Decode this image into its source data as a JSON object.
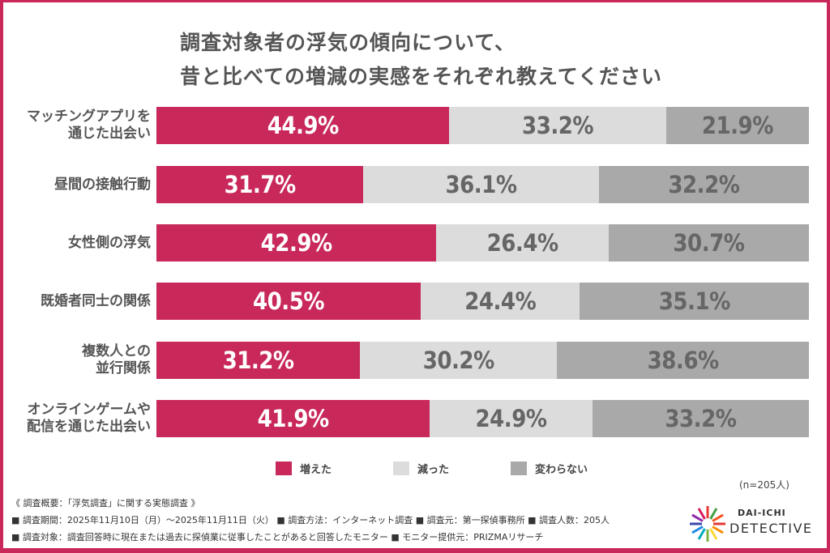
{
  "chart_data": {
    "type": "bar",
    "stacked": true,
    "orientation": "horizontal",
    "title": [
      "調査対象者の浮気の傾向について、",
      "昔と比べての増減の実感をそれぞれ教えてください"
    ],
    "categories": [
      "マッチングアプリを\n通じた出会い",
      "昼間の接触行動",
      "女性側の浮気",
      "既婚者同士の関係",
      "複数人との\n並行関係",
      "オンラインゲームや\n配信を通じた出会い"
    ],
    "series": [
      {
        "name": "増えた",
        "values": [
          44.9,
          31.7,
          42.9,
          40.5,
          31.2,
          41.9
        ],
        "color": "#c8285a"
      },
      {
        "name": "減った",
        "values": [
          33.2,
          36.1,
          26.4,
          24.4,
          30.2,
          24.9
        ],
        "color": "#dcdcdc"
      },
      {
        "name": "変わらない",
        "values": [
          21.9,
          32.2,
          30.7,
          35.1,
          38.6,
          33.2
        ],
        "color": "#a9a9a9"
      }
    ],
    "unit": "%",
    "legend": "bottom",
    "grid": false
  },
  "sample": "(n=205人)",
  "footer": [
    "《 調査概要：「浮気調査」に関する実態調査 》",
    "■ 調査期間：2025年11月10日（月）～2025年11月11日（火）  ■ 調査方法：インターネット調査  ■ 調査元：第一探偵事務所  ■ 調査人数：205人",
    "■ 調査対象：調査回答時に現在または過去に探偵業に従事したことがあると回答したモニター  ■ モニター提供元：PRIZMAリサーチ"
  ],
  "logo": {
    "line1": "DAI-ICHI",
    "line2": "DETECTIVE"
  }
}
